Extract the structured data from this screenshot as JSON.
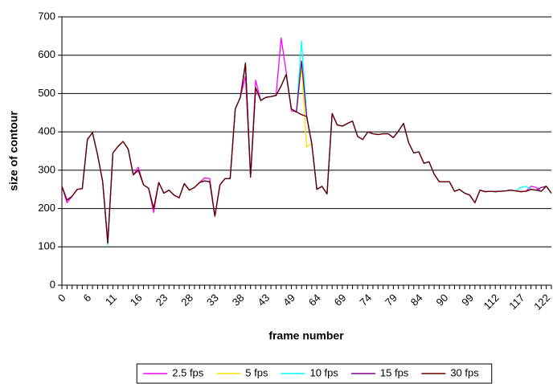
{
  "chart_data": {
    "type": "line",
    "x_label": "frame number",
    "y_label": "size of contour",
    "categories": [
      "0",
      null,
      null,
      null,
      null,
      "6",
      null,
      null,
      null,
      null,
      "11",
      null,
      null,
      null,
      null,
      "16",
      null,
      null,
      null,
      null,
      "23",
      null,
      null,
      null,
      null,
      "28",
      null,
      null,
      null,
      null,
      "33",
      null,
      null,
      null,
      null,
      "38",
      null,
      null,
      null,
      null,
      "43",
      null,
      null,
      null,
      null,
      "49",
      null,
      null,
      null,
      null,
      "64",
      null,
      null,
      null,
      null,
      "69",
      null,
      null,
      null,
      null,
      "74",
      null,
      null,
      null,
      null,
      "79",
      null,
      null,
      null,
      null,
      "84",
      null,
      null,
      null,
      null,
      "90",
      null,
      null,
      null,
      null,
      "99",
      null,
      null,
      null,
      null,
      "112",
      null,
      null,
      null,
      null,
      "117",
      null,
      null,
      null,
      null,
      "122",
      null
    ],
    "ylim": [
      0,
      700
    ],
    "yticks": [
      0,
      100,
      200,
      300,
      400,
      500,
      600,
      700
    ],
    "grid": true,
    "legend": "bottom",
    "series": [
      {
        "name": "2.5 fps",
        "color": "#ff00ff",
        "values": [
          258,
          215,
          232,
          250,
          252,
          380,
          398,
          340,
          270,
          115,
          345,
          362,
          375,
          355,
          288,
          308,
          262,
          253,
          190,
          268,
          240,
          248,
          235,
          228,
          265,
          248,
          255,
          268,
          280,
          278,
          180,
          262,
          278,
          278,
          460,
          490,
          545,
          282,
          535,
          482,
          490,
          492,
          495,
          645,
          555,
          455,
          452,
          445,
          440,
          370,
          250,
          258,
          238,
          448,
          418,
          415,
          422,
          428,
          388,
          380,
          400,
          395,
          393,
          395,
          395,
          385,
          402,
          422,
          372,
          345,
          348,
          318,
          322,
          290,
          270,
          270,
          270,
          245,
          250,
          240,
          235,
          215,
          248,
          244,
          245,
          244,
          245,
          246,
          248,
          246,
          244,
          245,
          258,
          255,
          245,
          258,
          240
        ]
      },
      {
        "name": "5 fps",
        "color": "#f2e600",
        "values": [
          258,
          222,
          232,
          250,
          252,
          380,
          398,
          340,
          270,
          110,
          345,
          362,
          375,
          355,
          288,
          300,
          262,
          253,
          200,
          268,
          240,
          248,
          235,
          228,
          265,
          248,
          255,
          268,
          272,
          270,
          180,
          262,
          278,
          278,
          460,
          490,
          580,
          282,
          515,
          482,
          490,
          492,
          495,
          520,
          550,
          460,
          452,
          570,
          360,
          372,
          250,
          258,
          238,
          448,
          418,
          415,
          422,
          428,
          388,
          380,
          400,
          395,
          393,
          395,
          395,
          385,
          402,
          422,
          372,
          345,
          348,
          318,
          322,
          290,
          270,
          270,
          270,
          245,
          250,
          240,
          235,
          215,
          248,
          244,
          245,
          244,
          245,
          246,
          248,
          246,
          244,
          245,
          250,
          248,
          245,
          258,
          240
        ]
      },
      {
        "name": "10 fps",
        "color": "#00ffff",
        "values": [
          258,
          222,
          232,
          250,
          252,
          380,
          398,
          340,
          270,
          105,
          345,
          362,
          375,
          355,
          288,
          300,
          262,
          253,
          200,
          268,
          240,
          248,
          235,
          228,
          265,
          248,
          255,
          268,
          272,
          270,
          180,
          262,
          278,
          278,
          460,
          490,
          580,
          282,
          515,
          482,
          490,
          492,
          495,
          520,
          550,
          460,
          452,
          637,
          445,
          370,
          250,
          258,
          238,
          448,
          418,
          415,
          422,
          428,
          388,
          380,
          400,
          395,
          393,
          395,
          395,
          385,
          402,
          422,
          372,
          345,
          348,
          318,
          322,
          290,
          270,
          270,
          270,
          245,
          250,
          240,
          235,
          215,
          248,
          244,
          245,
          244,
          245,
          246,
          248,
          246,
          255,
          258,
          250,
          248,
          245,
          258,
          240
        ]
      },
      {
        "name": "15 fps",
        "color": "#800080",
        "values": [
          258,
          222,
          232,
          250,
          252,
          380,
          398,
          340,
          270,
          110,
          345,
          362,
          375,
          355,
          288,
          300,
          262,
          253,
          200,
          268,
          240,
          248,
          235,
          228,
          265,
          248,
          255,
          268,
          272,
          270,
          180,
          262,
          278,
          278,
          460,
          490,
          575,
          282,
          515,
          482,
          490,
          492,
          495,
          520,
          550,
          460,
          452,
          585,
          440,
          370,
          250,
          258,
          238,
          448,
          418,
          415,
          422,
          428,
          388,
          380,
          400,
          395,
          393,
          395,
          395,
          385,
          402,
          422,
          372,
          345,
          348,
          318,
          322,
          290,
          270,
          270,
          270,
          245,
          250,
          240,
          235,
          215,
          248,
          244,
          245,
          244,
          245,
          246,
          248,
          246,
          244,
          245,
          250,
          248,
          255,
          258,
          240
        ]
      },
      {
        "name": "30 fps",
        "color": "#660000",
        "values": [
          258,
          222,
          232,
          250,
          252,
          380,
          398,
          340,
          270,
          110,
          345,
          362,
          375,
          355,
          288,
          300,
          262,
          253,
          200,
          268,
          240,
          248,
          235,
          228,
          265,
          248,
          255,
          268,
          272,
          270,
          180,
          262,
          278,
          278,
          460,
          490,
          580,
          282,
          515,
          482,
          490,
          492,
          495,
          520,
          550,
          460,
          452,
          445,
          440,
          370,
          250,
          258,
          238,
          448,
          418,
          415,
          422,
          428,
          388,
          380,
          400,
          395,
          393,
          395,
          395,
          385,
          402,
          422,
          372,
          345,
          348,
          318,
          322,
          290,
          270,
          270,
          270,
          245,
          250,
          240,
          235,
          215,
          248,
          244,
          245,
          244,
          245,
          246,
          248,
          246,
          244,
          245,
          250,
          248,
          245,
          258,
          240
        ]
      }
    ]
  }
}
